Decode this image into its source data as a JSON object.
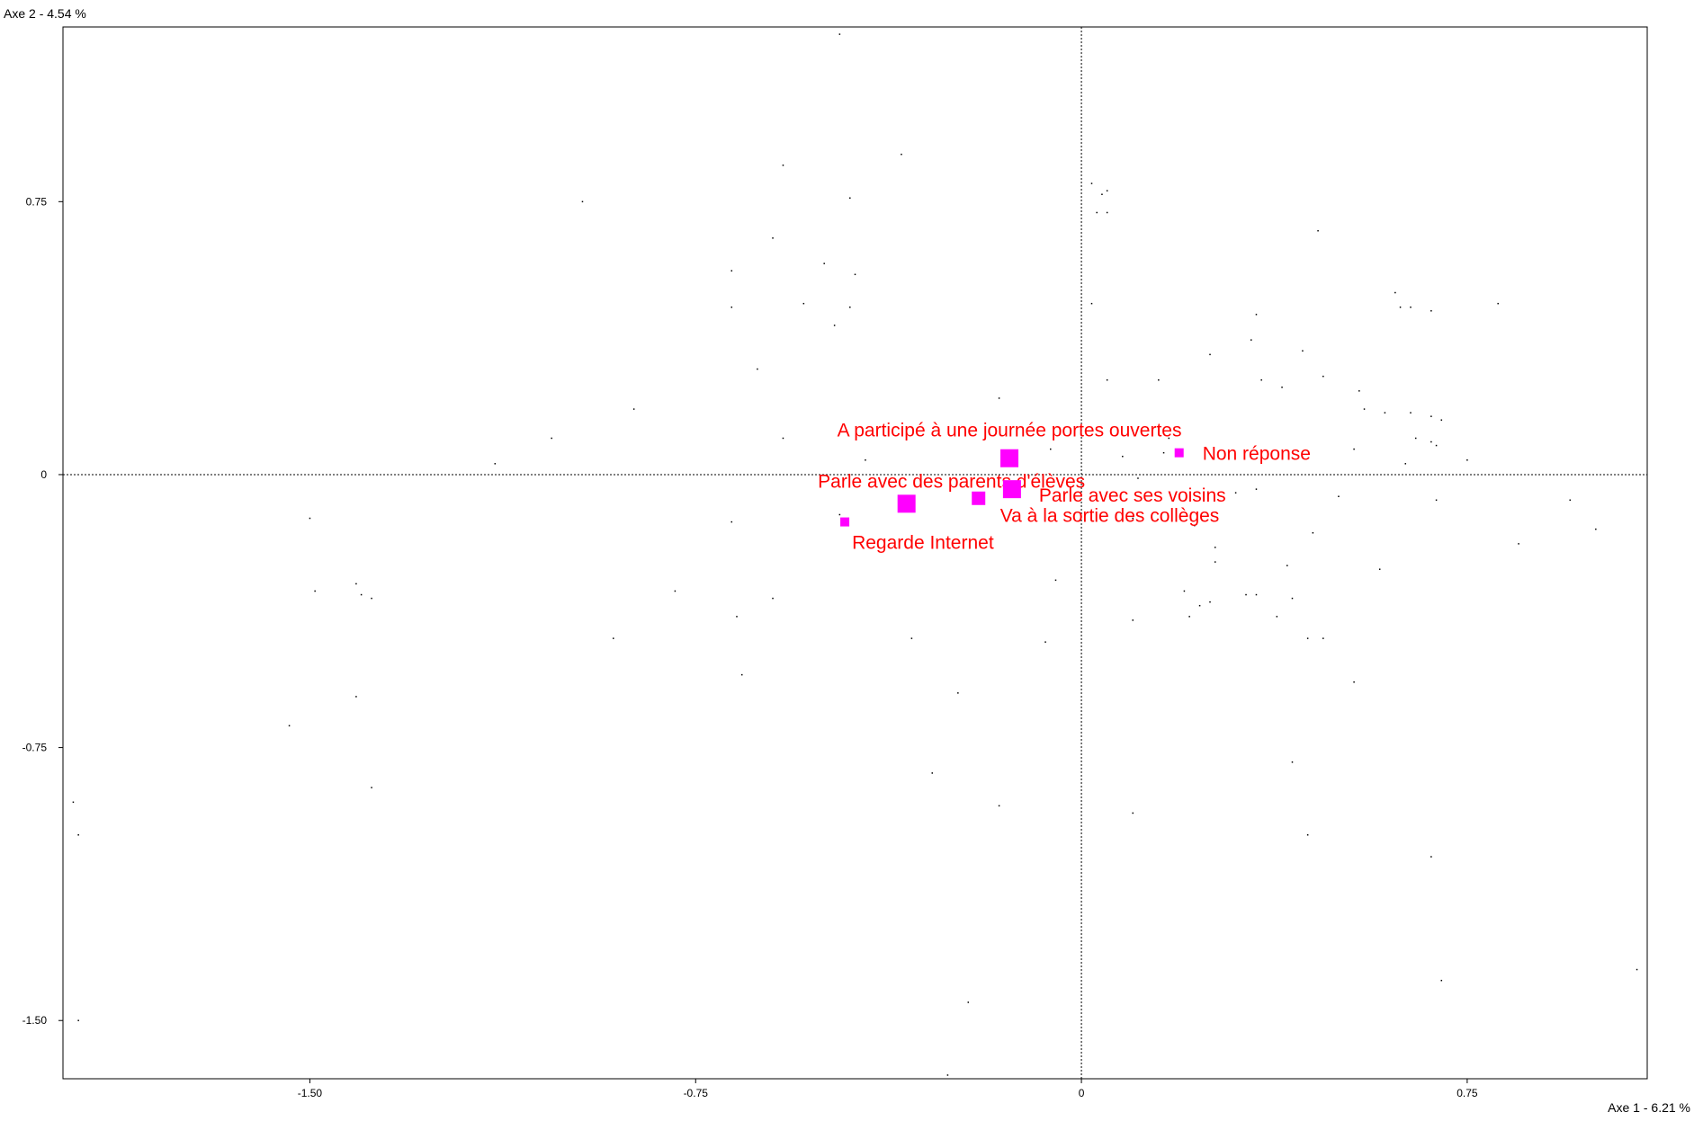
{
  "chart_data": {
    "type": "scatter",
    "x_axis_title": "Axe 1  -  6.21 %",
    "y_axis_title": "Axe 2  -  4.54 %",
    "xlim": [
      -1.98,
      1.1
    ],
    "ylim": [
      -1.66,
      1.23
    ],
    "x_ticks": [
      -1.5,
      -0.75,
      0,
      0.75
    ],
    "x_tick_labels": [
      "-1.50",
      "-0.75",
      "0",
      "0.75"
    ],
    "y_ticks": [
      0.75,
      0,
      -0.75,
      -1.5
    ],
    "y_tick_labels": [
      "0.75",
      "0",
      "-0.75",
      "-1.50"
    ],
    "grid": false,
    "origin_lines": "dotted",
    "colors": {
      "category_marker": "#ff00ff",
      "category_label": "#ff0000",
      "point": "#000000",
      "frame": "#000000"
    },
    "categories": [
      {
        "label": "A participé à une journée portes ouvertes",
        "x": -0.14,
        "y": 0.045,
        "size": "large"
      },
      {
        "label": "Non réponse",
        "x": 0.19,
        "y": 0.06,
        "size": "small"
      },
      {
        "label": "Parle avec des parents d'élèves",
        "x": -0.34,
        "y": -0.08,
        "size": "large"
      },
      {
        "label": "Parle avec ses voisins",
        "x": -0.135,
        "y": -0.04,
        "size": "large"
      },
      {
        "label": "Va à la sortie des collèges",
        "x": -0.2,
        "y": -0.065,
        "size": "medium"
      },
      {
        "label": "Regarde Internet",
        "x": -0.46,
        "y": -0.13,
        "size": "small"
      }
    ],
    "points": [
      [
        -0.47,
        1.21
      ],
      [
        -0.35,
        0.88
      ],
      [
        -0.58,
        0.85
      ],
      [
        -0.97,
        0.75
      ],
      [
        -0.45,
        0.76
      ],
      [
        -0.6,
        0.65
      ],
      [
        -0.68,
        0.56
      ],
      [
        -0.5,
        0.58
      ],
      [
        -0.44,
        0.55
      ],
      [
        -0.68,
        0.46
      ],
      [
        -0.54,
        0.47
      ],
      [
        -0.45,
        0.46
      ],
      [
        -0.48,
        0.41
      ],
      [
        -0.63,
        0.29
      ],
      [
        -0.87,
        0.18
      ],
      [
        -1.03,
        0.1
      ],
      [
        -0.58,
        0.1
      ],
      [
        -0.42,
        0.04
      ],
      [
        -1.14,
        0.03
      ],
      [
        -0.16,
        0.21
      ],
      [
        -0.47,
        -0.11
      ],
      [
        -0.68,
        -0.13
      ],
      [
        -0.79,
        -0.32
      ],
      [
        -0.6,
        -0.34
      ],
      [
        -0.67,
        -0.39
      ],
      [
        -0.91,
        -0.45
      ],
      [
        -0.33,
        -0.45
      ],
      [
        -0.66,
        -0.55
      ],
      [
        -0.24,
        -0.6
      ],
      [
        -0.29,
        -0.82
      ],
      [
        -0.16,
        -0.91
      ],
      [
        -0.22,
        -1.45
      ],
      [
        -0.26,
        -1.65
      ],
      [
        -0.07,
        -0.46
      ],
      [
        -0.05,
        -0.29
      ],
      [
        -1.5,
        -0.12
      ],
      [
        -1.49,
        -0.32
      ],
      [
        -1.41,
        -0.3
      ],
      [
        -1.4,
        -0.33
      ],
      [
        -1.38,
        -0.34
      ],
      [
        -1.41,
        -0.61
      ],
      [
        -1.38,
        -0.86
      ],
      [
        -1.54,
        -0.69
      ],
      [
        -1.96,
        -0.9
      ],
      [
        -1.95,
        -0.99
      ],
      [
        -1.95,
        -1.5
      ],
      [
        0.02,
        0.8
      ],
      [
        0.04,
        0.77
      ],
      [
        0.05,
        0.78
      ],
      [
        0.03,
        0.72
      ],
      [
        0.05,
        0.72
      ],
      [
        0.02,
        0.47
      ],
      [
        0.05,
        0.26
      ],
      [
        0.15,
        0.26
      ],
      [
        0.25,
        0.33
      ],
      [
        0.33,
        0.37
      ],
      [
        0.34,
        0.44
      ],
      [
        0.35,
        0.26
      ],
      [
        0.39,
        0.24
      ],
      [
        0.43,
        0.34
      ],
      [
        0.47,
        0.27
      ],
      [
        0.46,
        0.67
      ],
      [
        0.61,
        0.5
      ],
      [
        0.62,
        0.46
      ],
      [
        0.64,
        0.46
      ],
      [
        0.68,
        0.45
      ],
      [
        0.81,
        0.47
      ],
      [
        0.54,
        0.23
      ],
      [
        0.55,
        0.18
      ],
      [
        0.59,
        0.17
      ],
      [
        0.64,
        0.17
      ],
      [
        0.65,
        0.1
      ],
      [
        0.68,
        0.16
      ],
      [
        0.68,
        0.09
      ],
      [
        0.7,
        0.15
      ],
      [
        0.75,
        0.04
      ],
      [
        0.63,
        0.03
      ],
      [
        0.69,
        0.08
      ],
      [
        0.53,
        0.07
      ],
      [
        0.5,
        -0.06
      ],
      [
        0.34,
        -0.04
      ],
      [
        0.3,
        -0.05
      ],
      [
        0.45,
        -0.16
      ],
      [
        0.69,
        -0.07
      ],
      [
        0.95,
        -0.07
      ],
      [
        1.0,
        -0.15
      ],
      [
        0.85,
        -0.19
      ],
      [
        0.26,
        -0.2
      ],
      [
        0.26,
        -0.24
      ],
      [
        0.25,
        -0.35
      ],
      [
        0.2,
        -0.32
      ],
      [
        0.23,
        -0.36
      ],
      [
        0.21,
        -0.39
      ],
      [
        0.1,
        -0.4
      ],
      [
        0.32,
        -0.33
      ],
      [
        0.34,
        -0.33
      ],
      [
        0.4,
        -0.25
      ],
      [
        0.41,
        -0.34
      ],
      [
        0.38,
        -0.39
      ],
      [
        0.44,
        -0.45
      ],
      [
        0.47,
        -0.45
      ],
      [
        0.53,
        -0.57
      ],
      [
        0.58,
        -0.26
      ],
      [
        0.41,
        -0.79
      ],
      [
        0.44,
        -0.99
      ],
      [
        0.68,
        -1.05
      ],
      [
        0.7,
        -1.39
      ],
      [
        1.08,
        -1.36
      ],
      [
        0.1,
        -0.93
      ],
      [
        0.16,
        0.06
      ],
      [
        0.17,
        0.1
      ],
      [
        0.08,
        0.05
      ],
      [
        -0.06,
        0.07
      ],
      [
        0.11,
        -0.01
      ],
      [
        0.22,
        -0.14
      ],
      [
        0.1,
        -0.12
      ]
    ]
  }
}
